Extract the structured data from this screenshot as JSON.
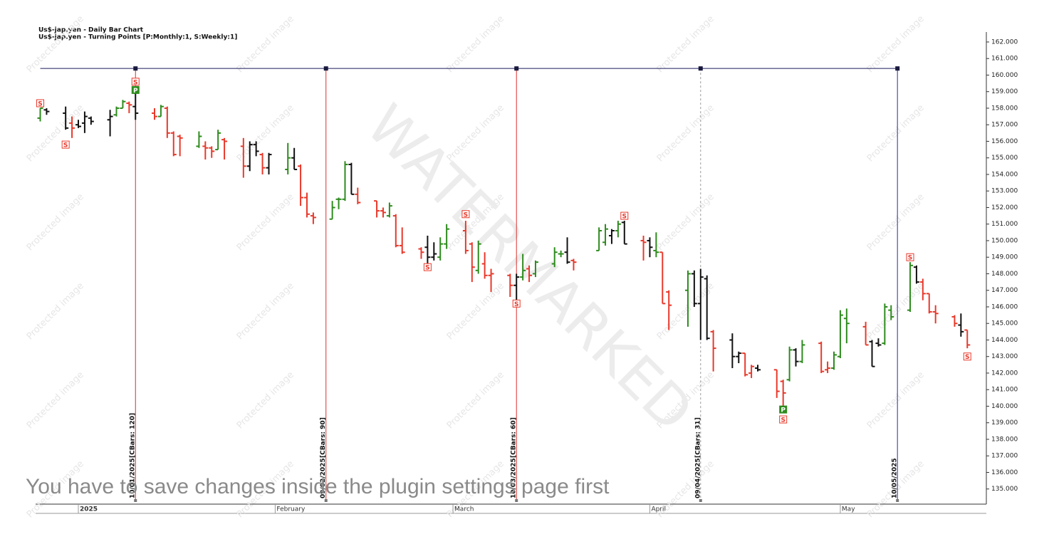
{
  "chart_data": {
    "type": "ohlc",
    "title": "Us$-jap.yen - Daily Bar Chart",
    "subtitle": "Us$-jap.yen - Turning Points [P:Monthly:1, S:Weekly:1]",
    "watermark": "WATERMARKED",
    "protected_text": "Protected image",
    "notice": "You have to save changes inside the plugin settings page first",
    "xlim": [
      -6.73,
      143.0
    ],
    "xticks": [
      {
        "value": 0,
        "label": "2025"
      },
      {
        "value": 31,
        "label": "February"
      },
      {
        "value": 59,
        "label": "March"
      },
      {
        "value": 90,
        "label": "April"
      },
      {
        "value": 120,
        "label": "May"
      }
    ],
    "ylim": [
      134.3,
      162.6
    ],
    "yticks": [
      {
        "value": 135,
        "label": "135.000"
      },
      {
        "value": 136,
        "label": "136.000"
      },
      {
        "value": 137,
        "label": "137.000"
      },
      {
        "value": 138,
        "label": "138.000"
      },
      {
        "value": 139,
        "label": "139.000"
      },
      {
        "value": 140,
        "label": "140.000"
      },
      {
        "value": 141,
        "label": "141.000"
      },
      {
        "value": 142,
        "label": "142.000"
      },
      {
        "value": 143,
        "label": "143.000"
      },
      {
        "value": 144,
        "label": "144.000"
      },
      {
        "value": 145,
        "label": "145.000"
      },
      {
        "value": 146,
        "label": "146.000"
      },
      {
        "value": 147,
        "label": "147.000"
      },
      {
        "value": 148,
        "label": "148.000"
      },
      {
        "value": 149,
        "label": "149.000"
      },
      {
        "value": 150,
        "label": "150.000"
      },
      {
        "value": 151,
        "label": "151.000"
      },
      {
        "value": 152,
        "label": "152.000"
      },
      {
        "value": 153,
        "label": "153.000"
      },
      {
        "value": 154,
        "label": "154.000"
      },
      {
        "value": 155,
        "label": "155.000"
      },
      {
        "value": 156,
        "label": "156.000"
      },
      {
        "value": 157,
        "label": "157.000"
      },
      {
        "value": 158,
        "label": "158.000"
      },
      {
        "value": 159,
        "label": "159.000"
      },
      {
        "value": 160,
        "label": "160.000"
      },
      {
        "value": 161,
        "label": "161.000"
      },
      {
        "value": 162,
        "label": "162.000"
      }
    ],
    "series": [
      {
        "color": "#2e8b1e",
        "x": [
          -6,
          6,
          7,
          13,
          19,
          22,
          33,
          40,
          41,
          42,
          49,
          57,
          58,
          63,
          70,
          72,
          75,
          76,
          82,
          83,
          85,
          91,
          96,
          112,
          114,
          119,
          120,
          121,
          127,
          128,
          131
        ],
        "open": [
          157.4,
          157.6,
          158.0,
          157.5,
          155.7,
          155.5,
          154.3,
          151.3,
          152.5,
          152.5,
          151.5,
          149.0,
          149.8,
          148.2,
          147.8,
          148.0,
          148.6,
          149.2,
          149.4,
          149.9,
          150.6,
          149.4,
          147.0,
          141.6,
          142.7,
          142.3,
          143.0,
          145.3,
          143.8,
          145.8,
          145.8
        ],
        "high": [
          158.0,
          158.1,
          158.5,
          158.2,
          156.6,
          156.7,
          155.9,
          152.4,
          152.6,
          154.8,
          152.3,
          150.2,
          151.0,
          150.0,
          149.2,
          148.8,
          149.6,
          149.4,
          150.8,
          151.0,
          151.2,
          150.5,
          148.2,
          143.6,
          144.0,
          143.3,
          145.8,
          145.9,
          146.2,
          146.1,
          148.7
        ],
        "low": [
          157.2,
          157.5,
          158.0,
          157.5,
          155.6,
          155.5,
          154.0,
          151.3,
          151.9,
          152.4,
          151.4,
          148.8,
          149.5,
          148.0,
          147.6,
          147.8,
          148.4,
          149.0,
          149.4,
          149.7,
          150.2,
          149.0,
          144.8,
          141.5,
          142.6,
          142.2,
          142.9,
          143.8,
          143.7,
          145.2,
          145.7
        ],
        "close": [
          158.0,
          158.0,
          158.4,
          158.1,
          156.3,
          156.5,
          155.0,
          152.0,
          152.5,
          154.6,
          152.1,
          149.8,
          150.7,
          149.8,
          148.2,
          148.7,
          149.3,
          149.2,
          150.6,
          150.7,
          151.0,
          149.3,
          148.0,
          143.4,
          143.7,
          143.1,
          145.5,
          145.0,
          146.0,
          145.4,
          148.5
        ]
      },
      {
        "color": "#e8392b",
        "x": [
          -1,
          8,
          12,
          14,
          15,
          16,
          20,
          21,
          23,
          26,
          29,
          35,
          36,
          37,
          44,
          47,
          48,
          50,
          51,
          54,
          61,
          62,
          64,
          65,
          68,
          71,
          78,
          89,
          92,
          93,
          100,
          105,
          106,
          110,
          111,
          117,
          118,
          124,
          133,
          134,
          135,
          138,
          140
        ],
        "open": [
          157.1,
          158.3,
          157.7,
          158.0,
          156.5,
          156.3,
          155.7,
          155.6,
          156.1,
          155.7,
          155.2,
          154.5,
          152.6,
          151.5,
          152.8,
          152.4,
          151.8,
          151.5,
          149.7,
          149.5,
          150.6,
          149.8,
          148.6,
          147.9,
          147.9,
          148.3,
          148.8,
          150.0,
          149.3,
          146.9,
          144.5,
          143.2,
          142.0,
          142.2,
          141.5,
          143.8,
          142.2,
          144.8,
          147.5,
          146.8,
          145.7,
          145.4,
          144.6
        ],
        "high": [
          157.5,
          158.4,
          158.0,
          158.1,
          156.6,
          156.4,
          156.0,
          155.7,
          156.2,
          156.2,
          155.3,
          154.6,
          152.9,
          151.7,
          153.2,
          152.4,
          152.0,
          151.6,
          150.8,
          149.6,
          151.2,
          149.9,
          149.3,
          148.3,
          148.0,
          148.5,
          148.9,
          150.3,
          149.3,
          147.0,
          144.6,
          143.2,
          142.5,
          142.2,
          141.6,
          143.9,
          142.7,
          145.1,
          147.7,
          146.8,
          146.1,
          145.5,
          144.6
        ],
        "low": [
          156.2,
          157.7,
          157.3,
          156.2,
          155.1,
          155.1,
          154.9,
          155.0,
          154.9,
          153.8,
          154.0,
          152.1,
          151.4,
          151.0,
          152.2,
          151.4,
          151.4,
          149.6,
          149.2,
          148.9,
          149.2,
          147.5,
          147.7,
          146.9,
          146.6,
          147.5,
          148.2,
          148.8,
          146.2,
          144.6,
          142.1,
          141.8,
          141.7,
          140.5,
          139.9,
          142.0,
          142.0,
          143.7,
          146.4,
          145.6,
          145.0,
          144.8,
          143.5
        ],
        "close": [
          156.8,
          158.2,
          157.5,
          156.5,
          155.2,
          156.2,
          155.6,
          155.4,
          156.0,
          154.5,
          154.4,
          152.6,
          151.6,
          151.4,
          152.3,
          151.8,
          151.7,
          149.7,
          149.3,
          149.3,
          149.4,
          148.4,
          147.9,
          148.0,
          147.3,
          147.9,
          148.7,
          149.9,
          146.2,
          146.1,
          143.5,
          141.9,
          142.4,
          140.9,
          140.8,
          142.1,
          142.3,
          143.7,
          146.8,
          145.7,
          145.6,
          145.0,
          143.7
        ]
      },
      {
        "color": "#111111",
        "x": [
          -5,
          -2,
          0,
          1,
          2,
          5,
          9,
          27,
          28,
          30,
          34,
          43,
          55,
          56,
          69,
          77,
          84,
          86,
          90,
          97,
          98,
          99,
          103,
          104,
          107,
          113,
          125,
          126,
          132,
          139
        ],
        "open": [
          157.9,
          157.7,
          157.0,
          157.1,
          157.4,
          157.3,
          158.1,
          154.5,
          155.8,
          154.4,
          155.0,
          154.6,
          149.6,
          149.0,
          147.3,
          149.3,
          150.3,
          151.1,
          150.0,
          148.0,
          146.2,
          147.7,
          144.0,
          143.0,
          142.3,
          143.4,
          143.9,
          143.8,
          148.4,
          144.9
        ],
        "high": [
          158.0,
          158.1,
          157.3,
          157.8,
          157.5,
          157.9,
          158.9,
          156.0,
          156.0,
          155.3,
          155.6,
          154.7,
          150.3,
          149.9,
          148.0,
          150.2,
          150.7,
          151.2,
          150.2,
          148.2,
          148.3,
          147.9,
          144.4,
          143.3,
          142.5,
          143.5,
          144.0,
          144.1,
          148.5,
          145.6
        ],
        "low": [
          157.6,
          156.7,
          156.8,
          156.5,
          157.0,
          156.3,
          157.3,
          154.2,
          155.1,
          154.0,
          154.3,
          152.8,
          148.6,
          148.8,
          146.4,
          148.6,
          149.8,
          149.8,
          149.0,
          146.0,
          144.0,
          144.0,
          142.3,
          142.6,
          142.1,
          142.4,
          142.4,
          143.6,
          147.4,
          144.2
        ],
        "close": [
          157.8,
          156.8,
          156.9,
          157.5,
          157.2,
          157.5,
          157.7,
          155.8,
          155.4,
          155.2,
          154.3,
          152.8,
          149.0,
          149.2,
          147.8,
          148.7,
          150.6,
          149.8,
          149.6,
          146.2,
          147.8,
          144.1,
          143.0,
          143.2,
          142.2,
          142.7,
          142.4,
          143.7,
          147.5,
          144.5
        ]
      }
    ],
    "turning_points": [
      {
        "label": "S",
        "x": -6,
        "y": 158.3,
        "color": "#e8392b"
      },
      {
        "label": "S",
        "x": -2,
        "y": 155.8,
        "color": "#e8392b"
      },
      {
        "label": "S",
        "x": 9,
        "y": 159.6,
        "color": "#e8392b"
      },
      {
        "label": "P",
        "x": 9,
        "y": 159.1,
        "color": "#2e8b1e"
      },
      {
        "label": "S",
        "x": 55,
        "y": 148.4,
        "color": "#e8392b"
      },
      {
        "label": "S",
        "x": 61,
        "y": 151.6,
        "color": "#e8392b"
      },
      {
        "label": "S",
        "x": 69,
        "y": 146.2,
        "color": "#e8392b"
      },
      {
        "label": "S",
        "x": 86,
        "y": 151.5,
        "color": "#e8392b"
      },
      {
        "label": "P",
        "x": 111,
        "y": 139.8,
        "color": "#2e8b1e"
      },
      {
        "label": "S",
        "x": 111,
        "y": 139.2,
        "color": "#e8392b"
      },
      {
        "label": "S",
        "x": 131,
        "y": 149.0,
        "color": "#e8392b"
      },
      {
        "label": "S",
        "x": 140,
        "y": 143.0,
        "color": "#e8392b"
      }
    ],
    "cycle": {
      "level": 160.4,
      "start": -6,
      "color": "#1a1a5e",
      "lines": [
        {
          "x": 9,
          "date": "10/01/2025",
          "bars": "[CBars: 120]",
          "color": "#d9302a",
          "style": "solid"
        },
        {
          "x": 39,
          "date": "09/02/2025",
          "bars": "[CBars: 90]",
          "color": "#d9302a",
          "style": "solid"
        },
        {
          "x": 69,
          "date": "10/03/2025",
          "bars": "[CBars: 60]",
          "color": "#d9302a",
          "style": "solid"
        },
        {
          "x": 98,
          "date": "09/04/2025",
          "bars": "[CBars: 31]",
          "color": "#999999",
          "style": "dashed"
        },
        {
          "x": 129,
          "date": "10/05/2025",
          "color": "#2a2a9e",
          "style": "solid"
        }
      ]
    }
  }
}
